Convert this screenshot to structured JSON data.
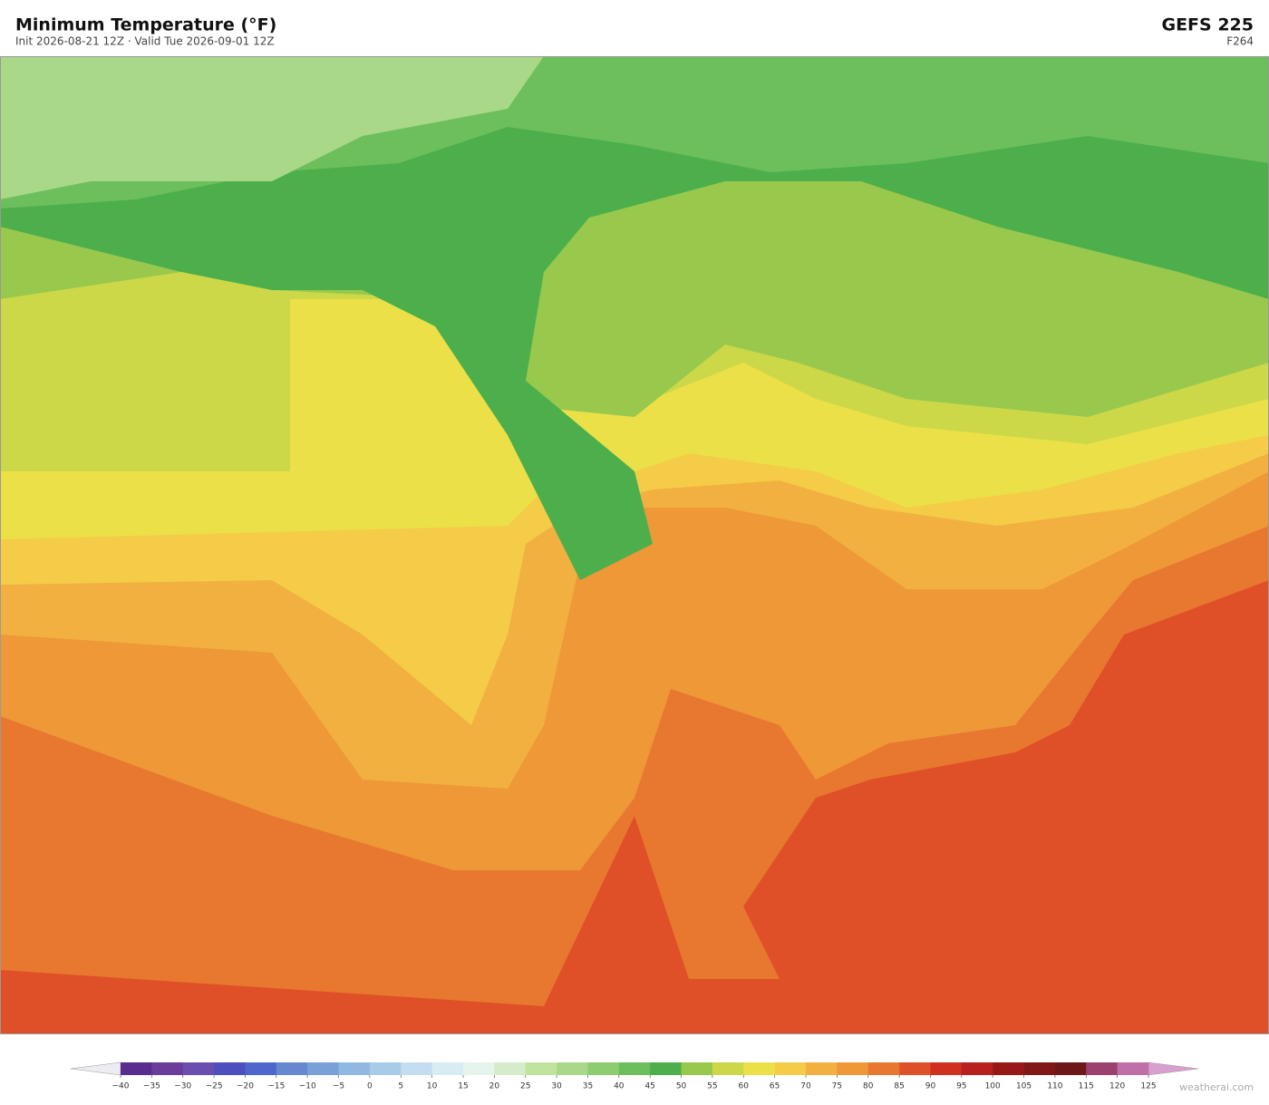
{
  "header": {
    "title": "Minimum Temperature  (°F)",
    "subtitle": "Init 2026-08-21 12Z  ·  Valid Tue 2026-09-01 12Z",
    "model": "GEFS  225",
    "forecast_hour": "F264"
  },
  "colorbar": {
    "ticks": [
      {
        "value": -40,
        "label": "−40"
      },
      {
        "value": -35,
        "label": "−35"
      },
      {
        "value": -30,
        "label": "−30"
      },
      {
        "value": -25,
        "label": "−25"
      },
      {
        "value": -20,
        "label": "−20"
      },
      {
        "value": -15,
        "label": "−15"
      },
      {
        "value": -10,
        "label": "−10"
      },
      {
        "value": -5,
        "label": "−5"
      },
      0,
      5,
      10,
      15,
      20,
      25,
      30,
      35,
      40,
      45,
      50,
      55,
      60,
      65,
      70,
      75,
      80,
      85,
      90,
      95,
      100,
      105,
      110,
      115,
      120,
      125
    ],
    "colors": [
      "#5b2c8f",
      "#6a3d9a",
      "#6b4fb0",
      "#4b4fc0",
      "#4f66cc",
      "#6688d0",
      "#7aa0d8",
      "#90b8e0",
      "#a8cce8",
      "#c4def0",
      "#d8ecf4",
      "#e6f4ec",
      "#d4ecc8",
      "#c0e4a0",
      "#a8d888",
      "#8ecc70",
      "#6cbf5c",
      "#4caf4c",
      "#98c84c",
      "#ccd848",
      "#ece048",
      "#f4cc48",
      "#f2b040",
      "#ee9838",
      "#e87830",
      "#e05028",
      "#d03020",
      "#b82020",
      "#981818",
      "#801818",
      "#6c1818",
      "#9c4070",
      "#c070a8"
    ],
    "under_color": "#ececf2",
    "over_color": "#d8a0d0"
  },
  "footer": {
    "watermark": "weatherai.com"
  }
}
